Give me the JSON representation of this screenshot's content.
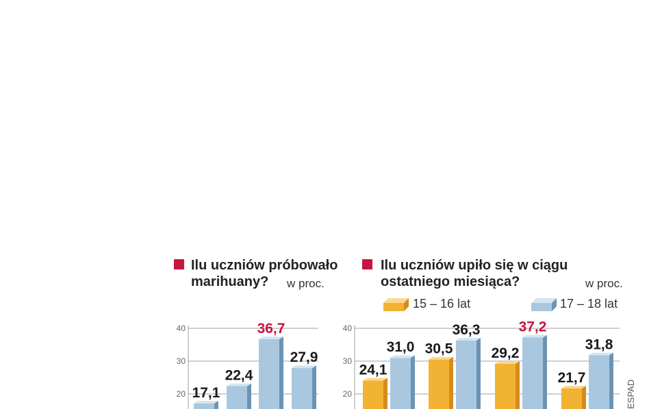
{
  "colors": {
    "accent": "#c4163f",
    "blue_front": "#a9c8df",
    "blue_side": "#6d93b2",
    "blue_top": "#d4e5f1",
    "orange_front": "#f2b233",
    "orange_side": "#d78b1c",
    "orange_top": "#f9d98e",
    "grid": "#a0a0a0",
    "label": "#1a1a1a"
  },
  "source": "ESPAD",
  "chart_data": [
    {
      "type": "bar",
      "title": "Ilu uczniów próbowało marihuany?",
      "unit": "w proc.",
      "y_ticks": [
        20,
        30,
        40
      ],
      "ylim": [
        0,
        40
      ],
      "series": [
        {
          "values": [
            17.1,
            22.4,
            36.7,
            27.9
          ],
          "labels": [
            "17,1",
            "22,4",
            "36,7",
            "27,9"
          ],
          "highlight_index": 2
        }
      ]
    },
    {
      "type": "bar",
      "title": "Ilu uczniów upiło się w ciągu ostatniego miesiąca?",
      "unit": "w proc.",
      "y_ticks": [
        20,
        30,
        40
      ],
      "ylim": [
        0,
        40
      ],
      "legend": [
        "15 – 16 lat",
        "17 – 18 lat"
      ],
      "groups": [
        {
          "values": [
            24.1,
            31.0
          ],
          "labels": [
            "24,1",
            "31,0"
          ]
        },
        {
          "values": [
            30.5,
            36.3
          ],
          "labels": [
            "30,5",
            "36,3"
          ]
        },
        {
          "values": [
            29.2,
            37.2
          ],
          "labels": [
            "29,2",
            "37,2"
          ],
          "highlight": [
            false,
            true
          ]
        },
        {
          "values": [
            21.7,
            31.8
          ],
          "labels": [
            "21,7",
            "31,8"
          ]
        }
      ]
    }
  ]
}
